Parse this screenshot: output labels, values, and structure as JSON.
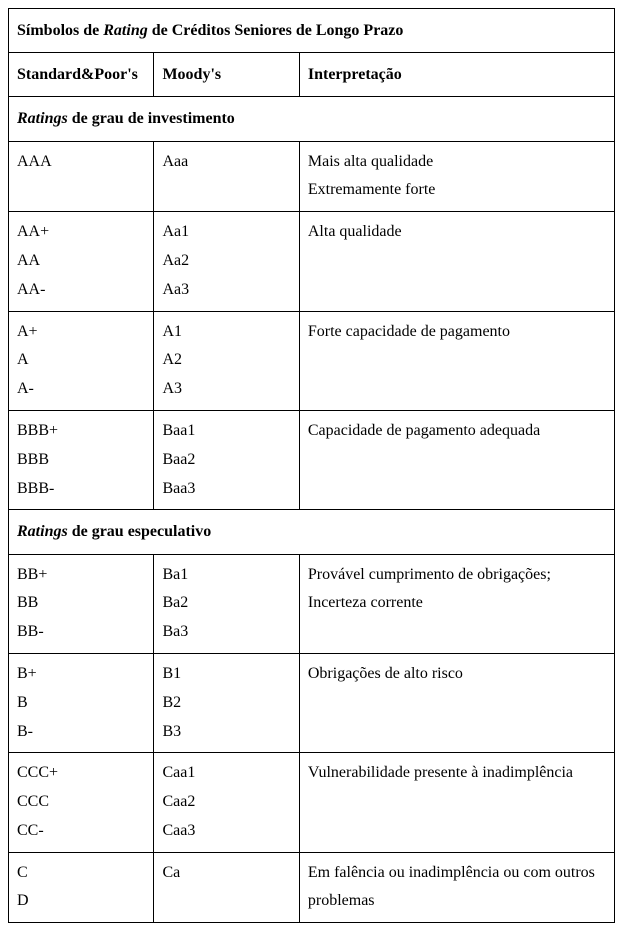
{
  "table": {
    "title_prefix": "Símbolos de ",
    "title_italic": "Rating",
    "title_suffix": " de Créditos Seniores de Longo Prazo",
    "columns": {
      "sp": "Standard&Poor's",
      "moody": "Moody's",
      "interp": "Interpretação"
    },
    "section1_italic": "Ratings",
    "section1_rest": " de grau de investimento",
    "section2_italic": "Ratings",
    "section2_rest": " de grau especulativo",
    "rows": {
      "r1": {
        "sp1": "AAA",
        "moody1": "Aaa",
        "interp1": "Mais alta qualidade",
        "interp2": "Extremamente forte"
      },
      "r2": {
        "sp1": "AA+",
        "sp2": "AA",
        "sp3": "AA-",
        "moody1": "Aa1",
        "moody2": "Aa2",
        "moody3": "Aa3",
        "interp1": "Alta qualidade"
      },
      "r3": {
        "sp1": "A+",
        "sp2": "A",
        "sp3": "A-",
        "moody1": "A1",
        "moody2": "A2",
        "moody3": "A3",
        "interp1": "Forte capacidade de pagamento"
      },
      "r4": {
        "sp1": "BBB+",
        "sp2": "BBB",
        "sp3": "BBB-",
        "moody1": "Baa1",
        "moody2": "Baa2",
        "moody3": "Baa3",
        "interp1": "Capacidade de pagamento adequada"
      },
      "r5": {
        "sp1": "BB+",
        "sp2": "BB",
        "sp3": "BB-",
        "moody1": "Ba1",
        "moody2": "Ba2",
        "moody3": "Ba3",
        "interp1": "Provável cumprimento de obrigações;",
        "interp2": "Incerteza corrente"
      },
      "r6": {
        "sp1": "B+",
        "sp2": "B",
        "sp3": "B-",
        "moody1": "B1",
        "moody2": "B2",
        "moody3": "B3",
        "interp1": "Obrigações de alto risco"
      },
      "r7": {
        "sp1": "CCC+",
        "sp2": "CCC",
        "sp3": "CC-",
        "moody1": "Caa1",
        "moody2": "Caa2",
        "moody3": "Caa3",
        "interp1": "Vulnerabilidade presente à inadimplência"
      },
      "r8": {
        "sp1": "C",
        "sp2": "D",
        "moody1": "Ca",
        "interp1": "Em falência ou inadimplência ou com outros",
        "interp2": "problemas"
      }
    }
  }
}
